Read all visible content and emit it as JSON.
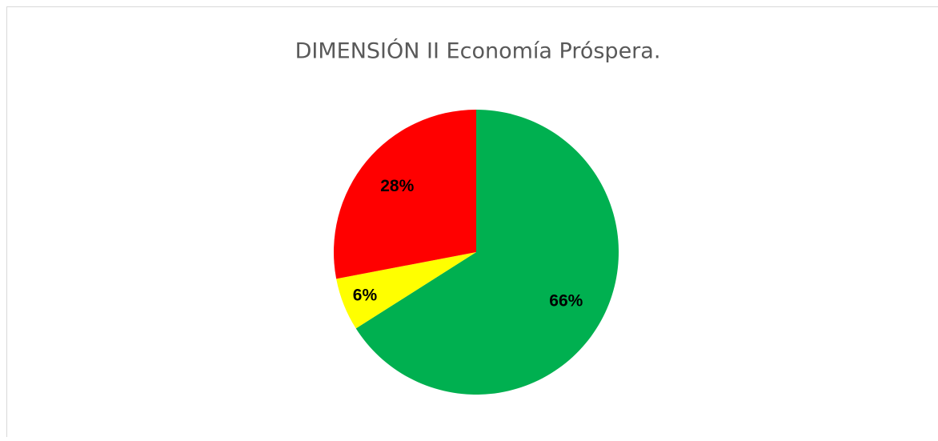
{
  "chart_data": {
    "type": "pie",
    "title": "DIMENSIÓN II  Economía Próspera.",
    "values": [
      66,
      6,
      28
    ],
    "value_labels": [
      "66%",
      "6%",
      "28%"
    ],
    "colors": [
      "#00b050",
      "#ffff00",
      "#ff0000"
    ]
  }
}
